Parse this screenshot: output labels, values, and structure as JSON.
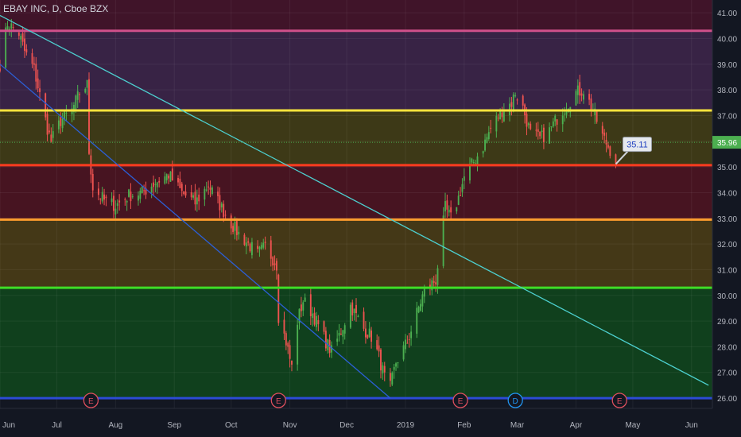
{
  "header": {
    "symbol": "EBAY INC",
    "interval": "D",
    "exchange": "Cboe BZX"
  },
  "colors": {
    "background": "#131722",
    "up": "#26a69a",
    "up_bright": "#4caf50",
    "down": "#ef5350",
    "axis_text": "#b2b5be"
  },
  "chart_data": {
    "type": "candlestick",
    "x_axis_labels": [
      "Jun",
      "Jul",
      "Aug",
      "Sep",
      "Oct",
      "Nov",
      "Dec",
      "2019",
      "Feb",
      "Mar",
      "Apr",
      "May",
      "Jun"
    ],
    "y_axis_labels": [
      "26.00",
      "27.00",
      "28.00",
      "29.00",
      "30.00",
      "31.00",
      "32.00",
      "33.00",
      "34.00",
      "35.00",
      "36.00",
      "37.00",
      "38.00",
      "39.00",
      "40.00",
      "41.00"
    ],
    "ylim": [
      25.6,
      41.5
    ],
    "last_price_label": "35.96",
    "last_price": 35.96,
    "annotation": {
      "text": "35.11",
      "date": "2019-04-22",
      "price": 35.11
    },
    "horizontal_levels": [
      {
        "price": 40.3,
        "color": "#d0508a"
      },
      {
        "price": 37.2,
        "color": "#f5e33d"
      },
      {
        "price": 35.07,
        "color": "#ff3b1f"
      },
      {
        "price": 32.95,
        "color": "#ff9d2e"
      },
      {
        "price": 30.3,
        "color": "#3fdc27"
      },
      {
        "price": 26.0,
        "color": "#2c4bd6"
      }
    ],
    "zones": [
      {
        "from": 40.3,
        "to": 41.5,
        "color": "#42142a"
      },
      {
        "from": 37.2,
        "to": 40.3,
        "color": "#3a2448"
      },
      {
        "from": 35.07,
        "to": 37.2,
        "color": "#3f3b17"
      },
      {
        "from": 32.95,
        "to": 35.07,
        "color": "#4a1422"
      },
      {
        "from": 30.3,
        "to": 32.95,
        "color": "#473a17"
      },
      {
        "from": 26.0,
        "to": 30.3,
        "color": "#10421d"
      }
    ],
    "trendlines": [
      {
        "from": [
          "2018-06-01",
          40.9
        ],
        "to": [
          "2019-06-10",
          26.5
        ],
        "color": "#4dd0d0"
      },
      {
        "from": [
          "2018-06-01",
          39.0
        ],
        "to": [
          "2018-12-24",
          26.0
        ],
        "color": "#2c5fd6"
      }
    ],
    "event_markers": [
      {
        "label": "E",
        "date": "2018-07-19",
        "kind": "earnings"
      },
      {
        "label": "E",
        "date": "2018-10-26",
        "kind": "earnings"
      },
      {
        "label": "E",
        "date": "2019-01-30",
        "kind": "earnings"
      },
      {
        "label": "D",
        "date": "2019-02-28",
        "kind": "dividend"
      },
      {
        "label": "E",
        "date": "2019-04-24",
        "kind": "earnings"
      }
    ],
    "price_anchors": [
      [
        "2018-06-01",
        39.0
      ],
      [
        "2018-06-05",
        40.6
      ],
      [
        "2018-06-11",
        40.2
      ],
      [
        "2018-06-14",
        39.5
      ],
      [
        "2018-06-19",
        38.8
      ],
      [
        "2018-06-22",
        37.8
      ],
      [
        "2018-06-26",
        36.5
      ],
      [
        "2018-06-28",
        36.0
      ],
      [
        "2018-07-03",
        36.8
      ],
      [
        "2018-07-09",
        37.2
      ],
      [
        "2018-07-13",
        37.9
      ],
      [
        "2018-07-17",
        38.2
      ],
      [
        "2018-07-18",
        35.6
      ],
      [
        "2018-07-20",
        34.2
      ],
      [
        "2018-07-26",
        33.7
      ],
      [
        "2018-08-01",
        33.5
      ],
      [
        "2018-08-08",
        33.9
      ],
      [
        "2018-08-15",
        34.0
      ],
      [
        "2018-08-22",
        34.4
      ],
      [
        "2018-08-29",
        34.7
      ],
      [
        "2018-09-05",
        34.0
      ],
      [
        "2018-09-12",
        33.6
      ],
      [
        "2018-09-19",
        34.3
      ],
      [
        "2018-09-26",
        33.4
      ],
      [
        "2018-10-01",
        32.8
      ],
      [
        "2018-10-05",
        32.4
      ],
      [
        "2018-10-10",
        32.0
      ],
      [
        "2018-10-15",
        31.6
      ],
      [
        "2018-10-19",
        31.9
      ],
      [
        "2018-10-25",
        31.2
      ],
      [
        "2018-10-26",
        29.2
      ],
      [
        "2018-10-30",
        28.2
      ],
      [
        "2018-11-02",
        27.2
      ],
      [
        "2018-11-05",
        29.0
      ],
      [
        "2018-11-08",
        29.8
      ],
      [
        "2018-11-13",
        29.3
      ],
      [
        "2018-11-16",
        28.8
      ],
      [
        "2018-11-20",
        28.2
      ],
      [
        "2018-11-23",
        27.8
      ],
      [
        "2018-11-28",
        28.6
      ],
      [
        "2018-12-03",
        29.6
      ],
      [
        "2018-12-06",
        29.2
      ],
      [
        "2018-12-10",
        28.7
      ],
      [
        "2018-12-14",
        28.4
      ],
      [
        "2018-12-18",
        27.6
      ],
      [
        "2018-12-21",
        26.8
      ],
      [
        "2018-12-24",
        26.4
      ],
      [
        "2018-12-27",
        27.4
      ],
      [
        "2019-01-02",
        28.2
      ],
      [
        "2019-01-07",
        29.3
      ],
      [
        "2019-01-11",
        30.2
      ],
      [
        "2019-01-17",
        30.6
      ],
      [
        "2019-01-22",
        33.4
      ],
      [
        "2019-01-25",
        33.0
      ],
      [
        "2019-01-29",
        33.8
      ],
      [
        "2019-02-01",
        34.6
      ],
      [
        "2019-02-06",
        35.2
      ],
      [
        "2019-02-11",
        35.8
      ],
      [
        "2019-02-15",
        36.5
      ],
      [
        "2019-02-21",
        37.2
      ],
      [
        "2019-02-26",
        37.5
      ],
      [
        "2019-02-28",
        37.9
      ],
      [
        "2019-03-04",
        37.3
      ],
      [
        "2019-03-08",
        36.3
      ],
      [
        "2019-03-13",
        36.1
      ],
      [
        "2019-03-18",
        36.4
      ],
      [
        "2019-03-22",
        36.9
      ],
      [
        "2019-03-27",
        37.4
      ],
      [
        "2019-04-01",
        37.9
      ],
      [
        "2019-04-05",
        38.0
      ],
      [
        "2019-04-10",
        37.2
      ],
      [
        "2019-04-15",
        36.2
      ],
      [
        "2019-04-18",
        35.8
      ],
      [
        "2019-04-22",
        35.3
      ]
    ]
  }
}
